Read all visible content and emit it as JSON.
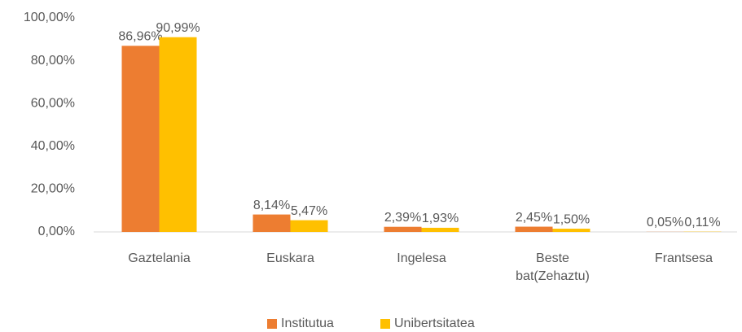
{
  "chart_data": {
    "type": "bar",
    "categories": [
      "Gaztelania",
      "Euskara",
      "Ingelesa",
      "Beste bat(Zehaztu)",
      "Frantsesa"
    ],
    "series": [
      {
        "name": "Institutua",
        "color": "#ED7D31",
        "values": [
          86.96,
          8.14,
          2.39,
          2.45,
          0.05
        ],
        "value_labels": [
          "86,96%",
          "8,14%",
          "2,39%",
          "2,45%",
          "0,05%"
        ]
      },
      {
        "name": "Unibertsitatea",
        "color": "#FFC000",
        "values": [
          90.99,
          5.47,
          1.93,
          1.5,
          0.11
        ],
        "value_labels": [
          "90,99%",
          "5,47%",
          "1,93%",
          "1,50%",
          "0,11%"
        ]
      }
    ],
    "ylim": [
      0,
      100
    ],
    "yticks": [
      {
        "value": 0,
        "label": "0,00%"
      },
      {
        "value": 20,
        "label": "20,00%"
      },
      {
        "value": 40,
        "label": "40,00%"
      },
      {
        "value": 60,
        "label": "60,00%"
      },
      {
        "value": 80,
        "label": "80,00%"
      },
      {
        "value": 100,
        "label": "100,00%"
      }
    ],
    "grid": false,
    "legend": "bottom"
  }
}
